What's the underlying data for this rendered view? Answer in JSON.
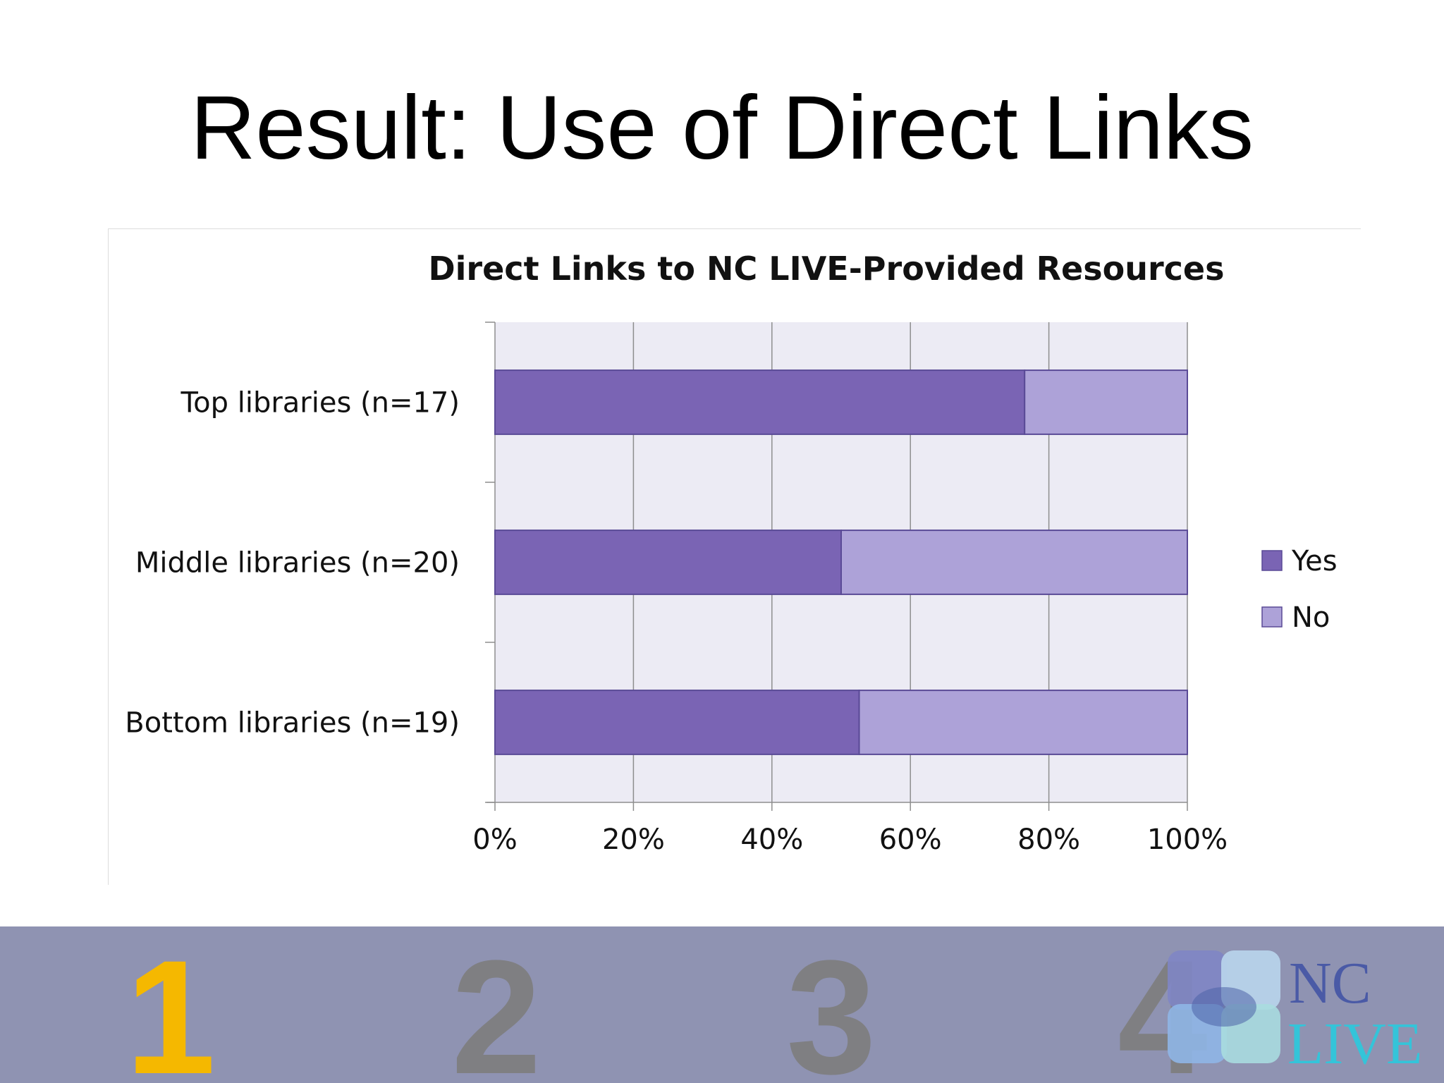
{
  "slide": {
    "title": "Result: Use of Direct Links"
  },
  "chart_data": {
    "type": "bar",
    "orientation": "horizontal",
    "stacked": "percent",
    "title": "Direct Links to NC LIVE-Provided Resources",
    "categories": [
      "Top libraries (n=17)",
      "Middle libraries (n=20)",
      "Bottom libraries (n=19)"
    ],
    "series": [
      {
        "name": "Yes",
        "values": [
          76.5,
          50,
          52.6
        ],
        "color": "#7a64b4"
      },
      {
        "name": "No",
        "values": [
          23.5,
          50,
          47.4
        ],
        "color": "#ada2d8"
      }
    ],
    "x_ticks": [
      "0%",
      "20%",
      "40%",
      "60%",
      "80%",
      "100%"
    ],
    "xlim": [
      0,
      100
    ],
    "grid": true,
    "legend": "right",
    "plot_background": "#ecebf4"
  },
  "footer": {
    "steps": [
      "1",
      "2",
      "3",
      "4"
    ],
    "active_step": "1",
    "logo": {
      "line1": "NC",
      "line2": "LIVE"
    }
  }
}
